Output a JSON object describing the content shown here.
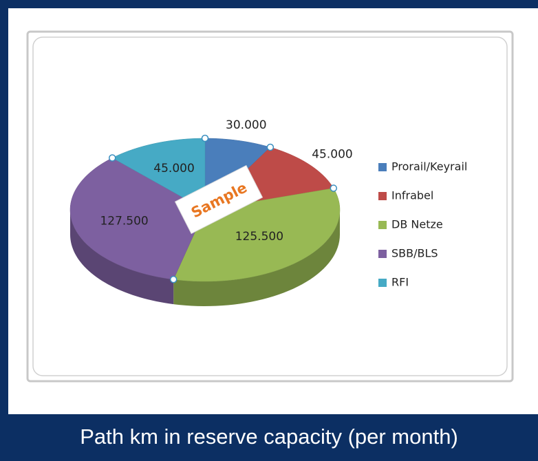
{
  "chart_data": {
    "type": "pie",
    "title": "Path km in reserve capacity (per month)",
    "categories": [
      "Prorail/Keyrail",
      "Infrabel",
      "DB Netze",
      "SBB/BLS",
      "RFI"
    ],
    "values": [
      30000,
      45000,
      125500,
      127500,
      45000
    ],
    "value_labels": [
      "30.000",
      "45.000",
      "125.500",
      "127.500",
      "45.000"
    ],
    "colors": [
      "#4a7ebb",
      "#be4b48",
      "#98b954",
      "#7d60a0",
      "#46aac5"
    ],
    "legend": "right",
    "annotation": "Sample"
  }
}
